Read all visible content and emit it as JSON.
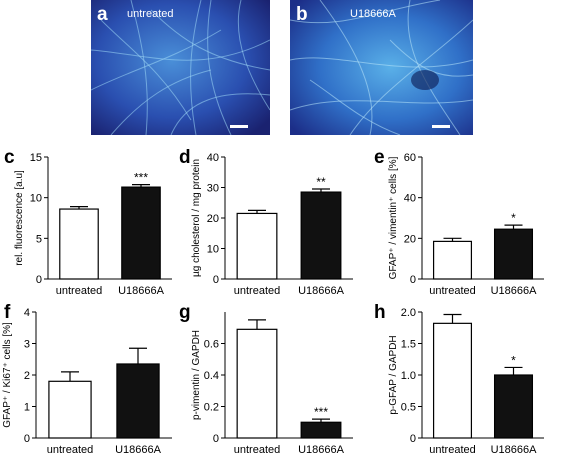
{
  "figure": {
    "panel_a": {
      "letter": "a",
      "condition": "untreated"
    },
    "panel_b": {
      "letter": "b",
      "condition": "U18666A"
    }
  },
  "chart_data": [
    {
      "panel": "c",
      "type": "bar",
      "categories": [
        "untreated",
        "U18666A"
      ],
      "values": [
        8.6,
        11.3
      ],
      "errors": [
        0.3,
        0.3
      ],
      "colors": [
        "#ffffff",
        "#111111"
      ],
      "significance": [
        "",
        "***"
      ],
      "ylabel": "rel. fluorescence [a.u]",
      "ylim": [
        0,
        15
      ],
      "yticks": [
        0,
        5,
        10,
        15
      ]
    },
    {
      "panel": "d",
      "type": "bar",
      "categories": [
        "untreated",
        "U18666A"
      ],
      "values": [
        21.5,
        28.5
      ],
      "errors": [
        1.0,
        1.0
      ],
      "colors": [
        "#ffffff",
        "#111111"
      ],
      "significance": [
        "",
        "**"
      ],
      "ylabel": "µg cholesterol / mg protein",
      "ylim": [
        0,
        40
      ],
      "yticks": [
        0,
        10,
        20,
        30,
        40
      ]
    },
    {
      "panel": "e",
      "type": "bar",
      "categories": [
        "untreated",
        "U18666A"
      ],
      "values": [
        18.5,
        24.5
      ],
      "errors": [
        1.5,
        2.0
      ],
      "colors": [
        "#ffffff",
        "#111111"
      ],
      "significance": [
        "",
        "*"
      ],
      "ylabel": "GFAP⁺ / vimentin⁺ cells [%]",
      "ylim": [
        0,
        60
      ],
      "yticks": [
        0,
        20,
        40,
        60
      ]
    },
    {
      "panel": "f",
      "type": "bar",
      "categories": [
        "untreated",
        "U18666A"
      ],
      "values": [
        1.8,
        2.35
      ],
      "errors": [
        0.3,
        0.5
      ],
      "colors": [
        "#ffffff",
        "#111111"
      ],
      "significance": [
        "",
        ""
      ],
      "ylabel": "GFAP⁺ / Ki67⁺ cells [%]",
      "ylim": [
        0,
        4
      ],
      "yticks": [
        0,
        1,
        2,
        3,
        4
      ]
    },
    {
      "panel": "g",
      "type": "bar",
      "categories": [
        "untreated",
        "U18666A"
      ],
      "values": [
        0.69,
        0.1
      ],
      "errors": [
        0.06,
        0.02
      ],
      "colors": [
        "#ffffff",
        "#111111"
      ],
      "significance": [
        "",
        "***"
      ],
      "ylabel": "p-vimentin / GAPDH",
      "ylim": [
        0,
        0.8
      ],
      "yticks": [
        0,
        0.2,
        0.4,
        0.6
      ]
    },
    {
      "panel": "h",
      "type": "bar",
      "categories": [
        "untreated",
        "U18666A"
      ],
      "values": [
        1.82,
        1.0
      ],
      "errors": [
        0.14,
        0.12
      ],
      "colors": [
        "#ffffff",
        "#111111"
      ],
      "significance": [
        "",
        "*"
      ],
      "ylabel": "p-GFAP / GAPDH",
      "ylim": [
        0,
        2.0
      ],
      "yticks": [
        0,
        0.5,
        1.0,
        1.5,
        2.0
      ]
    }
  ]
}
